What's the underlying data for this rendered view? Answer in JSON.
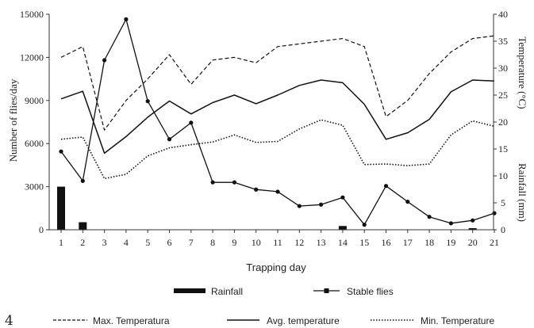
{
  "panel_label": "4",
  "chart_data": {
    "type": "bar+line",
    "xlabel": "Trapping day",
    "ylabel_left": "Number of flies/day",
    "ylabel_right_top": "Temperature (°C)",
    "ylabel_right_bottom": "Rainfall (mm)",
    "x": [
      1,
      2,
      3,
      4,
      5,
      6,
      7,
      8,
      9,
      10,
      11,
      12,
      13,
      14,
      15,
      16,
      17,
      18,
      19,
      20,
      21
    ],
    "y_left": {
      "min": 0,
      "max": 15000,
      "ticks": [
        0,
        3000,
        6000,
        9000,
        12000,
        15000
      ]
    },
    "y_right": {
      "min": 0,
      "max": 40,
      "ticks": [
        0,
        5,
        10,
        15,
        20,
        25,
        30,
        35,
        40
      ]
    },
    "series": [
      {
        "name": "Rainfall",
        "type": "bar",
        "axis": "right",
        "values": [
          8,
          1.4,
          0,
          0,
          0,
          0,
          0,
          0,
          0,
          0,
          0,
          0,
          0,
          0.7,
          0,
          0,
          0,
          0,
          0,
          0.3,
          0
        ]
      },
      {
        "name": "Stable flies",
        "type": "line",
        "axis": "left",
        "style": "solid-marker",
        "values": [
          5450,
          3400,
          11800,
          14650,
          8950,
          6300,
          7450,
          3300,
          3300,
          2800,
          2650,
          1650,
          1750,
          2250,
          350,
          3050,
          1950,
          900,
          450,
          650,
          1150
        ]
      },
      {
        "name": "Max. Temperatura",
        "type": "line",
        "axis": "right",
        "style": "dashed",
        "values": [
          32,
          34,
          18.5,
          24,
          28,
          32.5,
          27,
          31.5,
          32,
          31,
          34,
          34.5,
          35,
          35.5,
          34,
          21,
          24,
          29,
          33,
          35.5,
          36
        ]
      },
      {
        "name": "Avg. temperature",
        "type": "line",
        "axis": "right",
        "style": "solid",
        "values": [
          24.3,
          25.7,
          14.2,
          17.3,
          20.9,
          23.9,
          21.5,
          23.6,
          25,
          23.4,
          25,
          26.8,
          27.8,
          27.3,
          23.3,
          16.8,
          18,
          20.5,
          25.6,
          27.8,
          27.6
        ]
      },
      {
        "name": "Min. Temperature",
        "type": "line",
        "axis": "right",
        "style": "dotted",
        "values": [
          16.8,
          17.2,
          9.5,
          10.3,
          13.7,
          15.2,
          15.8,
          16.3,
          17.6,
          16.2,
          16.4,
          18.7,
          20.4,
          19.4,
          12.1,
          12.2,
          11.9,
          12.2,
          17.6,
          20.2,
          19.2
        ]
      }
    ],
    "legend": [
      {
        "label": "Rainfall",
        "style": "bar"
      },
      {
        "label": "Stable flies",
        "style": "solid-marker"
      },
      {
        "label": "Max. Temperatura",
        "style": "dashed"
      },
      {
        "label": "Avg. temperature",
        "style": "solid"
      },
      {
        "label": "Min. Temperature",
        "style": "dotted"
      }
    ]
  }
}
